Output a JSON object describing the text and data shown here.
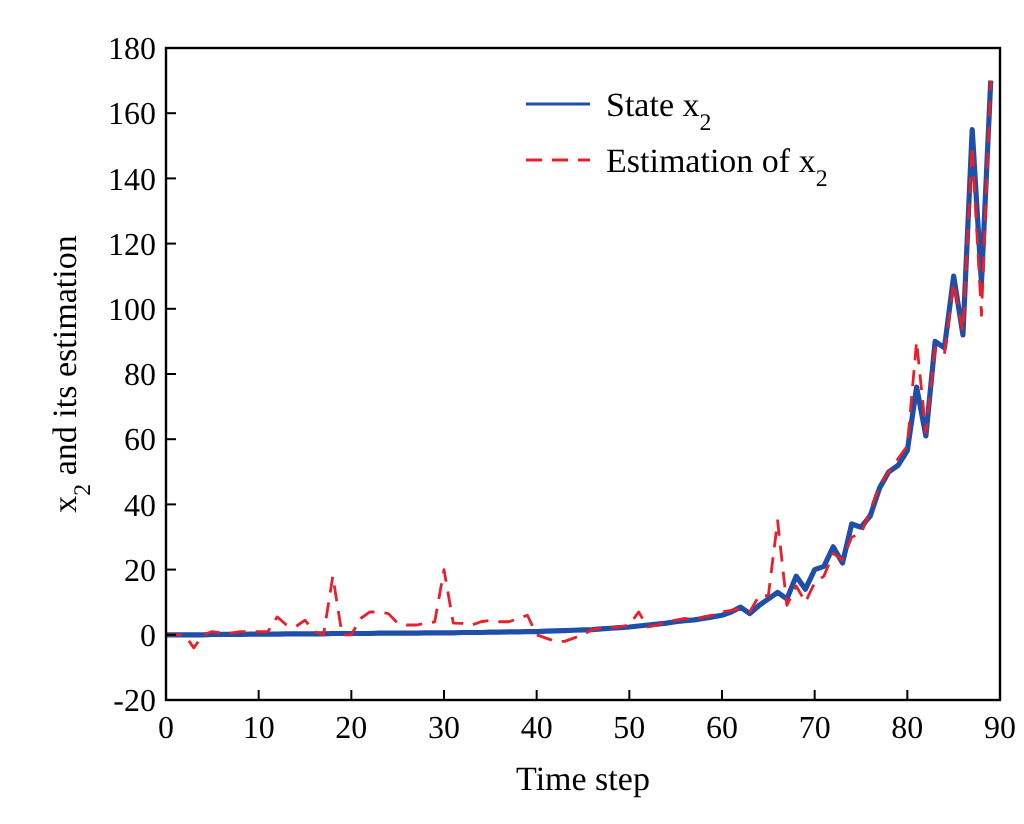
{
  "chart_data": {
    "type": "line",
    "xlabel": "Time step",
    "ylabel": "x$_{2}$ and its estimation",
    "xlim": [
      0,
      90
    ],
    "ylim": [
      -20,
      180
    ],
    "xticks": [
      0,
      10,
      20,
      30,
      40,
      50,
      60,
      70,
      80,
      90
    ],
    "yticks": [
      -20,
      0,
      20,
      40,
      60,
      80,
      100,
      120,
      140,
      160,
      180
    ],
    "grid": false,
    "legend": "top",
    "x": [
      0,
      1,
      2,
      3,
      4,
      5,
      6,
      7,
      8,
      9,
      10,
      11,
      12,
      13,
      14,
      15,
      16,
      17,
      18,
      19,
      20,
      21,
      22,
      23,
      24,
      25,
      26,
      27,
      28,
      29,
      30,
      31,
      32,
      33,
      34,
      35,
      36,
      37,
      38,
      39,
      40,
      41,
      42,
      43,
      44,
      45,
      46,
      47,
      48,
      49,
      50,
      51,
      52,
      53,
      54,
      55,
      56,
      57,
      58,
      59,
      60,
      61,
      62,
      63,
      64,
      65,
      66,
      67,
      68,
      69,
      70,
      71,
      72,
      73,
      74,
      75,
      76,
      77,
      78,
      79,
      80,
      81,
      82,
      83,
      84,
      85,
      86,
      87,
      88,
      89
    ],
    "series": [
      {
        "name": "State x$_{2}$",
        "color": "#1f4fa8",
        "line_style": "solid",
        "values": [
          0,
          0,
          0,
          0,
          0,
          0.1,
          0.1,
          0.1,
          0.1,
          0.2,
          0.2,
          0.2,
          0.2,
          0.3,
          0.3,
          0.3,
          0.3,
          0.3,
          0.4,
          0.4,
          0.4,
          0.4,
          0.4,
          0.5,
          0.5,
          0.5,
          0.5,
          0.5,
          0.6,
          0.6,
          0.6,
          0.6,
          0.7,
          0.7,
          0.7,
          0.8,
          0.8,
          0.9,
          0.9,
          1,
          1,
          1.1,
          1.2,
          1.3,
          1.4,
          1.5,
          1.6,
          1.8,
          2,
          2.2,
          2.4,
          2.7,
          3,
          3.3,
          3.6,
          4,
          4.3,
          4.6,
          5,
          5.5,
          6,
          7,
          8.5,
          6.5,
          9,
          11,
          13,
          11,
          18,
          14,
          20,
          21,
          27,
          22,
          34,
          33,
          36.5,
          45,
          50,
          52,
          56.5,
          76,
          61,
          90,
          88,
          110,
          92,
          155,
          108,
          170
        ]
      },
      {
        "name": "Estimation of x$_{2}$",
        "color": "#e8202a",
        "line_style": "dashed",
        "values": [
          0,
          0,
          0,
          -4,
          0,
          1,
          0.5,
          0.5,
          1,
          1,
          1,
          1,
          5.5,
          3,
          2.5,
          4.5,
          1,
          0,
          18,
          0,
          0,
          5,
          7,
          7,
          6.5,
          3.6,
          3,
          3,
          3.5,
          4,
          20,
          3.6,
          3.5,
          3,
          4,
          4.4,
          4,
          4,
          5,
          6,
          0,
          -1,
          -2,
          -2,
          -1,
          0,
          1.6,
          2,
          2.2,
          2.4,
          3,
          7,
          2.4,
          3,
          4,
          4.5,
          5,
          4.5,
          5.5,
          6,
          7,
          7.5,
          8,
          7,
          12,
          12,
          35,
          9,
          15,
          10,
          16,
          18,
          25,
          23,
          30,
          31,
          38,
          46,
          50,
          54,
          58,
          90,
          62,
          88,
          86,
          108,
          93,
          150,
          98,
          170
        ]
      }
    ]
  }
}
